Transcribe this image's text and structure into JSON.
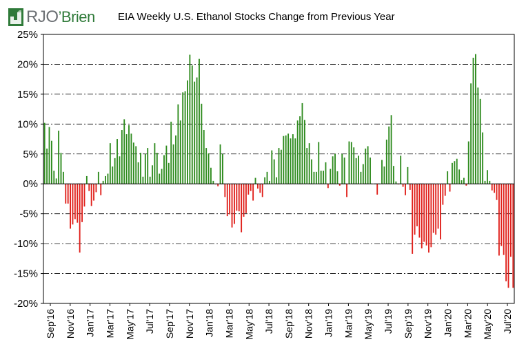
{
  "header": {
    "logo_text": "RJO",
    "logo_text_suffix": "Brien",
    "logo_apostrophe": "’",
    "title": "EIA Weekly U.S. Ethanol Stocks Change from Previous Year"
  },
  "colors": {
    "positive": "#2e8b1e",
    "negative": "#e0201b",
    "logo_green": "#2f7a39",
    "logo_gray": "#6b6f73"
  },
  "chart_data": {
    "type": "bar",
    "title": "EIA Weekly U.S. Ethanol Stocks Change from Previous Year",
    "xlabel": "",
    "ylabel": "",
    "ylim": [
      -20,
      25
    ],
    "yticks": [
      25,
      20,
      15,
      10,
      5,
      0,
      -5,
      -10,
      -15,
      -20
    ],
    "ytick_labels": [
      "25%",
      "20%",
      "15%",
      "10%",
      "5%",
      "0%",
      "-5%",
      "-10%",
      "-15%",
      "-20%"
    ],
    "grid": "horizontal dash-dot",
    "x_tick_labels": [
      "Sep'16",
      "Nov'16",
      "Jan'17",
      "Mar'17",
      "May'17",
      "Jul'17",
      "Sep'17",
      "Nov'17",
      "Jan'18",
      "Mar'18",
      "May'18",
      "Jul'18",
      "Sep'18",
      "Nov'18",
      "Jan'19",
      "Mar'19",
      "May'19",
      "Jul'19",
      "Sep'19",
      "Nov'19",
      "Jan'20",
      "Mar'20",
      "May'20",
      "Jul'20"
    ],
    "units": "percent",
    "series": [
      {
        "values": [
          10.2,
          5.9,
          9.5,
          7.2,
          2.2,
          0.9,
          8.9,
          5.2,
          2.0,
          -3.3,
          -3.3,
          -7.5,
          -6.8,
          -5.9,
          -6.5,
          -11.5,
          -6.4,
          -3.8,
          1.3,
          -1.2,
          -3.7,
          -2.8,
          -1.4,
          2.0,
          -1.9,
          0.5,
          1.3,
          1.7,
          6.8,
          2.9,
          4.3,
          7.5,
          4.6,
          9.0,
          10.8,
          8.3,
          9.8,
          8.4,
          6.9,
          6.3,
          3.6,
          5.2,
          1.2,
          5.0,
          6.0,
          1.2,
          3.1,
          6.8,
          5.2,
          1.7,
          2.5,
          4.8,
          6.4,
          3.5,
          10.4,
          6.6,
          8.1,
          13.3,
          10.6,
          15.3,
          15.5,
          17.3,
          21.6,
          19.8,
          17.1,
          17.8,
          20.9,
          13.4,
          9.0,
          6.0,
          5.1,
          2.7,
          0.5,
          -0.1,
          -0.4,
          6.6,
          5.0,
          -2.2,
          -5.4,
          -5.1,
          -7.3,
          -6.7,
          -4.5,
          -4.6,
          -8.1,
          -5.5,
          -4.9,
          -1.8,
          -1.2,
          -2.8,
          1.0,
          -0.8,
          -1.5,
          -2.2,
          1.1,
          2.0,
          0.5,
          5.6,
          4.1,
          1.1,
          6.0,
          5.7,
          8.0,
          8.1,
          8.4,
          7.6,
          8.3,
          7.6,
          10.6,
          11.3,
          13.5,
          10.7,
          6.0,
          6.8,
          4.1,
          2.0,
          2.0,
          7.0,
          2.2,
          2.2,
          3.6,
          -0.7,
          2.5,
          4.6,
          5.0,
          2.1,
          -0.3,
          5.0,
          4.4,
          -2.2,
          7.1,
          7.0,
          6.1,
          4.3,
          4.7,
          2.0,
          3.3,
          5.9,
          6.3,
          4.4,
          0.0,
          0.0,
          -1.8,
          0.0,
          4.0,
          2.9,
          7.4,
          9.6,
          11.5,
          3.0,
          0.4,
          -0.1,
          4.7,
          -0.5,
          -1.9,
          2.8,
          -1.0,
          -11.7,
          -8.5,
          -7.1,
          -9.0,
          -10.8,
          -9.7,
          -10.3,
          -11.5,
          -10.6,
          -8.2,
          -8.5,
          -7.5,
          -9.3,
          -3.5,
          -2.0,
          2.1,
          -1.3,
          3.5,
          3.8,
          4.2,
          2.4,
          0.6,
          1.0,
          -0.3,
          7.1,
          16.8,
          21.1,
          21.7,
          16.1,
          14.2,
          8.6,
          0.5,
          2.3,
          0.5,
          -1.1,
          -1.5,
          -2.7,
          -12.0,
          -10.4,
          -11.9,
          -16.3,
          -17.4,
          -12.2,
          -17.4
        ]
      }
    ]
  }
}
